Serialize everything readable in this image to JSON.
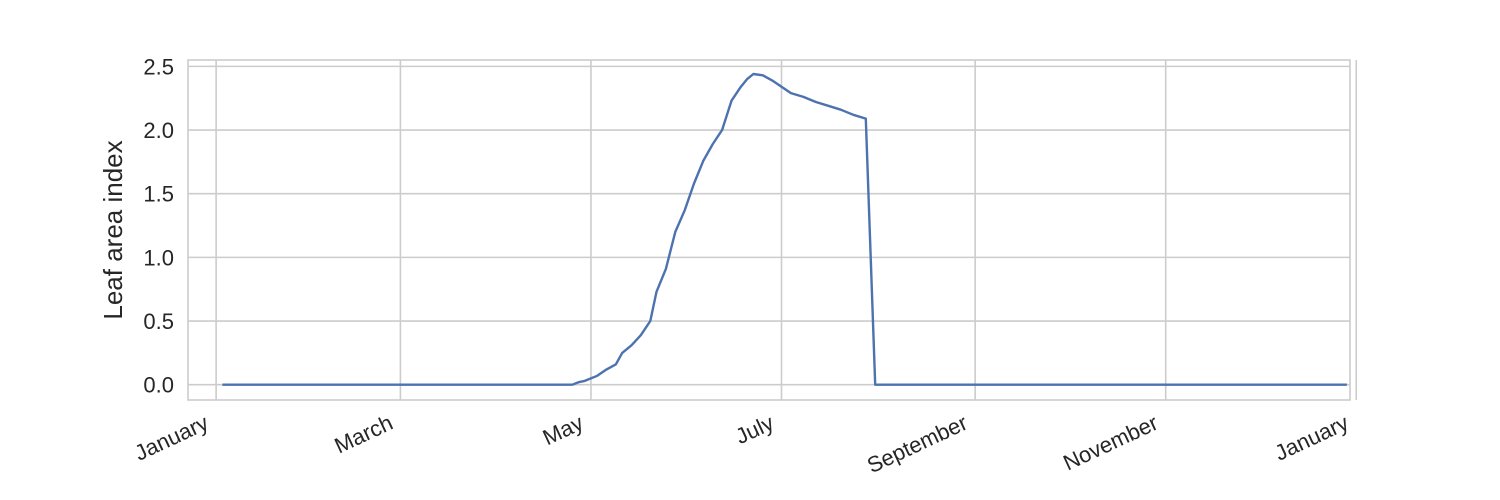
{
  "chart_data": {
    "type": "line",
    "title": "",
    "xlabel": "",
    "ylabel": "Leaf area index",
    "xlim": [
      "2020-12-23",
      "2021-12-30"
    ],
    "ylim": [
      -0.12,
      2.55
    ],
    "grid": true,
    "legend": "none",
    "line_color": "#4c72b0",
    "x_ticks": [
      {
        "date": "2021-01-01",
        "label": "January"
      },
      {
        "date": "2021-03-01",
        "label": "March"
      },
      {
        "date": "2021-05-01",
        "label": "May"
      },
      {
        "date": "2021-07-01",
        "label": "July"
      },
      {
        "date": "2021-09-01",
        "label": "September"
      },
      {
        "date": "2021-11-01",
        "label": "November"
      },
      {
        "date": "2022-01-01",
        "label": "January"
      }
    ],
    "y_ticks": [
      {
        "value": 0.0,
        "label": "0.0"
      },
      {
        "value": 0.5,
        "label": "0.5"
      },
      {
        "value": 1.0,
        "label": "1.0"
      },
      {
        "value": 1.5,
        "label": "1.5"
      },
      {
        "value": 2.0,
        "label": "2.0"
      },
      {
        "value": 2.5,
        "label": "2.5"
      }
    ],
    "series": [
      {
        "x": [
          "2021-01-03",
          "2021-04-25",
          "2021-04-27",
          "2021-04-29",
          "2021-05-03",
          "2021-05-06",
          "2021-05-09",
          "2021-05-11",
          "2021-05-14",
          "2021-05-17",
          "2021-05-20",
          "2021-05-22",
          "2021-05-25",
          "2021-05-28",
          "2021-05-31",
          "2021-06-03",
          "2021-06-06",
          "2021-06-09",
          "2021-06-12",
          "2021-06-15",
          "2021-06-18",
          "2021-06-20",
          "2021-06-22",
          "2021-06-25",
          "2021-06-28",
          "2021-07-01",
          "2021-07-04",
          "2021-07-08",
          "2021-07-12",
          "2021-07-16",
          "2021-07-20",
          "2021-07-24",
          "2021-07-28",
          "2021-07-31",
          "2021-08-03",
          "2021-08-05",
          "2021-12-29"
        ],
        "y": [
          0.0,
          0.0,
          0.02,
          0.03,
          0.07,
          0.12,
          0.16,
          0.25,
          0.31,
          0.39,
          0.5,
          0.73,
          0.91,
          1.2,
          1.37,
          1.58,
          1.76,
          1.89,
          2.0,
          2.23,
          2.34,
          2.4,
          2.44,
          2.43,
          2.39,
          2.34,
          2.29,
          2.26,
          2.22,
          2.19,
          2.16,
          2.12,
          2.09,
          0.0,
          0.0,
          0.0,
          0.0
        ]
      }
    ]
  }
}
